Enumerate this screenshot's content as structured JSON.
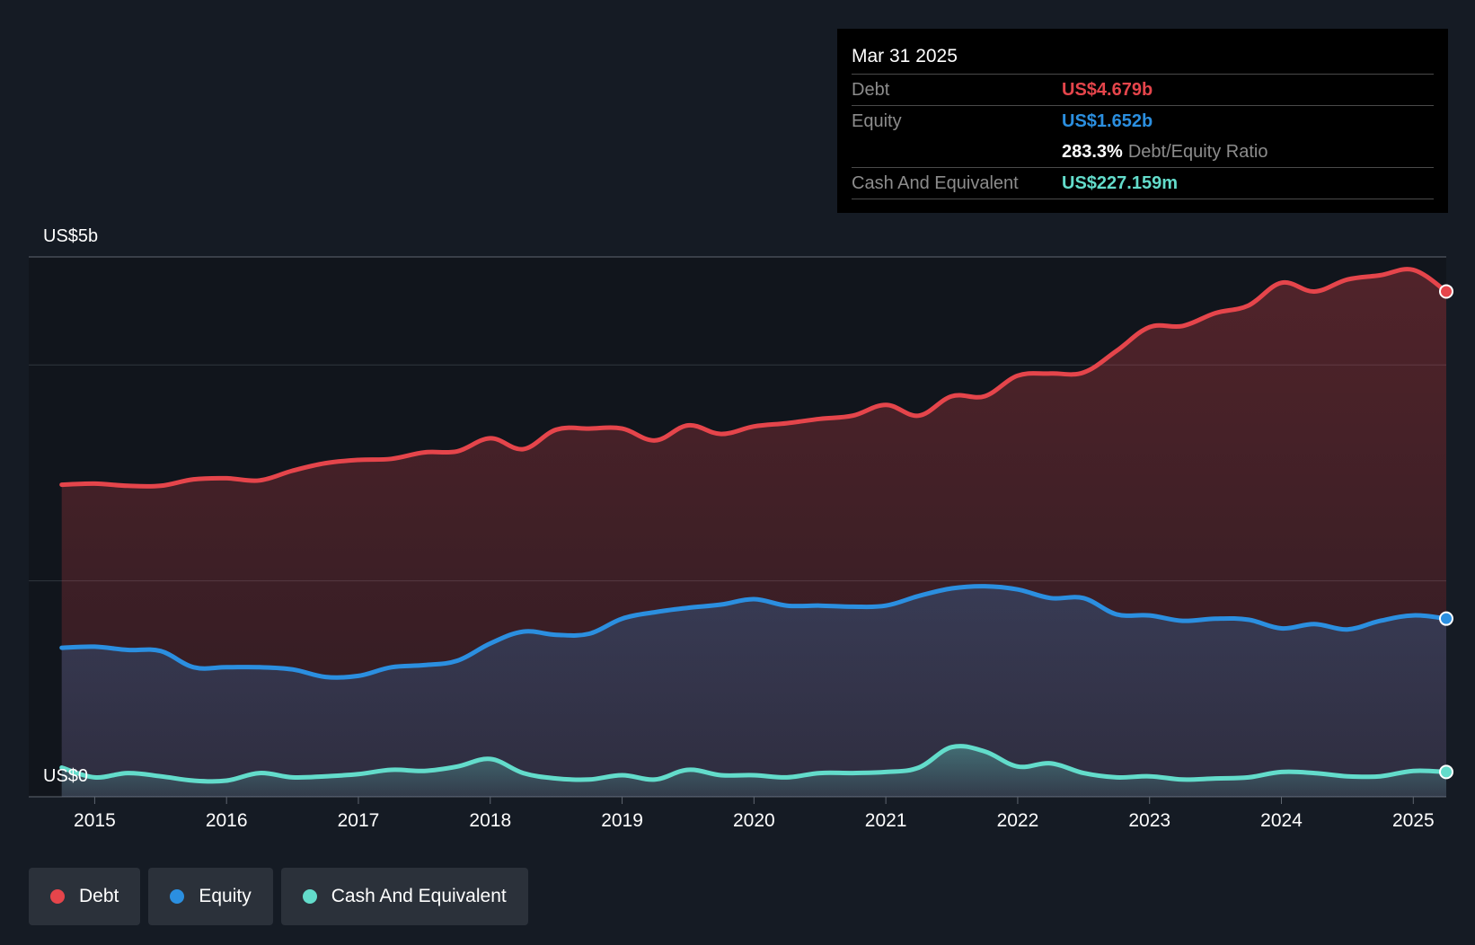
{
  "colors": {
    "debt": "#e5454b",
    "equity": "#2b8fe0",
    "cash": "#63dccb",
    "background": "#151b24"
  },
  "tooltip": {
    "date": "Mar 31 2025",
    "debt_label": "Debt",
    "debt_value": "US$4.679b",
    "equity_label": "Equity",
    "equity_value": "US$1.652b",
    "ratio_value": "283.3%",
    "ratio_label": "Debt/Equity Ratio",
    "cash_label": "Cash And Equivalent",
    "cash_value": "US$227.159m"
  },
  "legend": [
    {
      "label": "Debt",
      "color": "#e5454b"
    },
    {
      "label": "Equity",
      "color": "#2b8fe0"
    },
    {
      "label": "Cash And Equivalent",
      "color": "#63dccb"
    }
  ],
  "chart_data": {
    "type": "area",
    "title": "",
    "xlabel": "",
    "ylabel": "",
    "y_top_label": "US$5b",
    "y_bottom_label": "US$0",
    "ylim": [
      0,
      5
    ],
    "y_gridlines": [
      0,
      2,
      4,
      5
    ],
    "x_range": [
      2014.5,
      2025.25
    ],
    "x_ticks": [
      2015,
      2016,
      2017,
      2018,
      2019,
      2020,
      2021,
      2022,
      2023,
      2024,
      2025
    ],
    "x_tick_labels": [
      "2015",
      "2016",
      "2017",
      "2018",
      "2019",
      "2020",
      "2021",
      "2022",
      "2023",
      "2024",
      "2025"
    ],
    "unit": "US$ billions",
    "x": [
      2014.75,
      2015.0,
      2015.25,
      2015.5,
      2015.75,
      2016.0,
      2016.25,
      2016.5,
      2016.75,
      2017.0,
      2017.25,
      2017.5,
      2017.75,
      2018.0,
      2018.25,
      2018.5,
      2018.75,
      2019.0,
      2019.25,
      2019.5,
      2019.75,
      2020.0,
      2020.25,
      2020.5,
      2020.75,
      2021.0,
      2021.25,
      2021.5,
      2021.75,
      2022.0,
      2022.25,
      2022.5,
      2022.75,
      2023.0,
      2023.25,
      2023.5,
      2023.75,
      2024.0,
      2024.25,
      2024.5,
      2024.75,
      2025.0,
      2025.25
    ],
    "series": [
      {
        "name": "Debt",
        "values": [
          2.89,
          2.9,
          2.88,
          2.88,
          2.94,
          2.95,
          2.93,
          3.02,
          3.09,
          3.12,
          3.13,
          3.19,
          3.2,
          3.32,
          3.22,
          3.4,
          3.41,
          3.41,
          3.3,
          3.44,
          3.36,
          3.43,
          3.46,
          3.5,
          3.53,
          3.63,
          3.53,
          3.71,
          3.71,
          3.9,
          3.92,
          3.93,
          4.13,
          4.35,
          4.36,
          4.48,
          4.55,
          4.76,
          4.68,
          4.79,
          4.83,
          4.88,
          4.68
        ]
      },
      {
        "name": "Equity",
        "values": [
          1.38,
          1.39,
          1.36,
          1.35,
          1.2,
          1.2,
          1.2,
          1.18,
          1.11,
          1.12,
          1.2,
          1.22,
          1.26,
          1.42,
          1.53,
          1.5,
          1.51,
          1.65,
          1.71,
          1.75,
          1.78,
          1.83,
          1.77,
          1.77,
          1.76,
          1.77,
          1.86,
          1.93,
          1.95,
          1.92,
          1.84,
          1.84,
          1.69,
          1.68,
          1.63,
          1.65,
          1.64,
          1.56,
          1.6,
          1.55,
          1.63,
          1.68,
          1.65
        ]
      },
      {
        "name": "Cash And Equivalent",
        "values": [
          0.27,
          0.18,
          0.22,
          0.19,
          0.15,
          0.15,
          0.22,
          0.18,
          0.19,
          0.21,
          0.25,
          0.24,
          0.28,
          0.35,
          0.22,
          0.17,
          0.16,
          0.2,
          0.16,
          0.25,
          0.2,
          0.2,
          0.18,
          0.22,
          0.22,
          0.23,
          0.27,
          0.46,
          0.42,
          0.28,
          0.31,
          0.22,
          0.18,
          0.19,
          0.16,
          0.17,
          0.18,
          0.23,
          0.22,
          0.19,
          0.19,
          0.24,
          0.23
        ]
      }
    ]
  }
}
